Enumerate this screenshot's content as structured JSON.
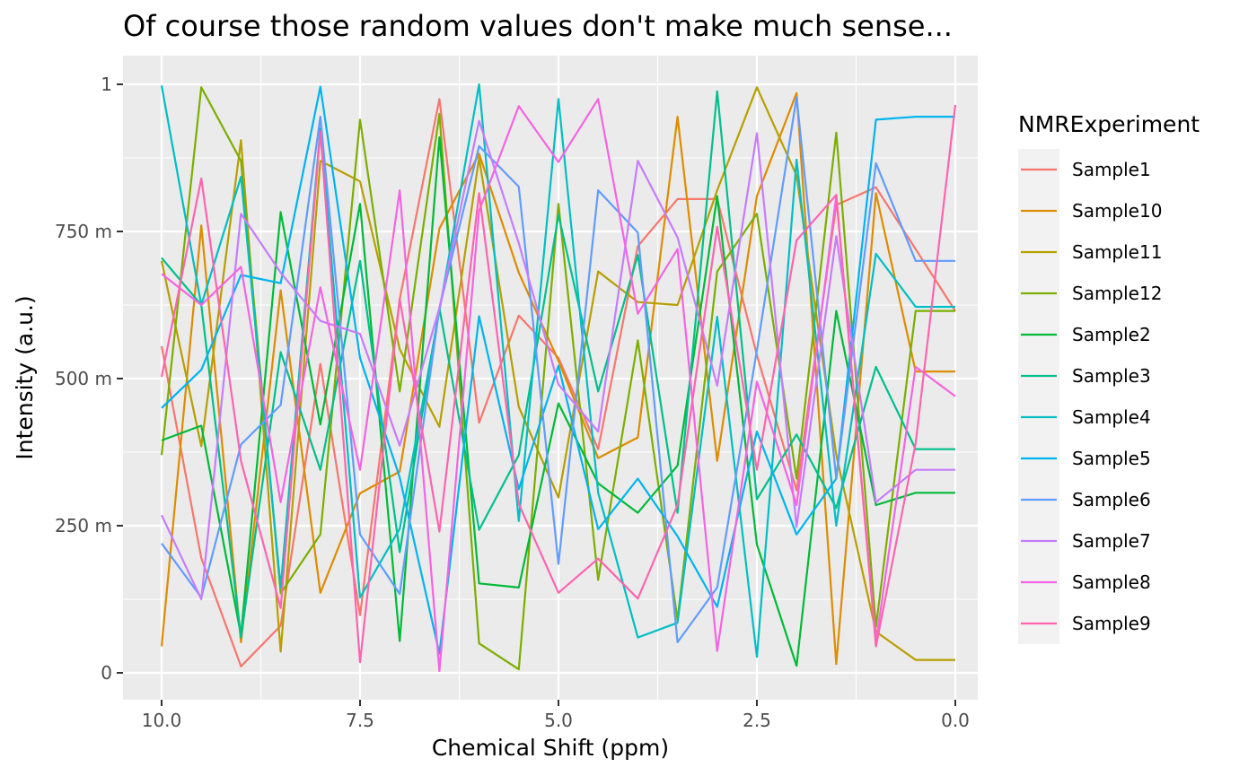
{
  "chart_data": {
    "type": "line",
    "title": "Of course those random values don't make much sense...",
    "xlabel": "Chemical Shift (ppm)",
    "ylabel": "Intensity (a.u.)",
    "x_reversed": true,
    "xlim": [
      10.0,
      0.0
    ],
    "ylim": [
      0,
      1
    ],
    "x_ticks": [
      10.0,
      7.5,
      5.0,
      2.5,
      0.0
    ],
    "x_tick_labels": [
      "10.0",
      "7.5",
      "5.0",
      "2.5",
      "0.0"
    ],
    "y_ticks": [
      0,
      0.25,
      0.5,
      0.75,
      1
    ],
    "y_tick_labels": [
      "0",
      "250 m",
      "500 m",
      "750 m",
      "1"
    ],
    "grid": true,
    "legend": {
      "title": "NMRExperiment",
      "placement": "right"
    },
    "x": [
      10.0,
      9.5,
      9.0,
      8.5,
      8.0,
      7.5,
      7.0,
      6.5,
      6.0,
      5.5,
      5.0,
      4.5,
      4.0,
      3.5,
      3.0,
      2.5,
      2.0,
      1.5,
      1.0,
      0.5,
      0.0
    ],
    "series": [
      {
        "name": "Sample1",
        "color": "#F8766D",
        "values": [
          0.555,
          0.195,
          0.011,
          0.08,
          0.525,
          0.098,
          0.635,
          0.975,
          0.425,
          0.607,
          0.535,
          0.38,
          0.725,
          0.805,
          0.805,
          0.54,
          0.31,
          0.795,
          0.825,
          0.72,
          0.615
        ]
      },
      {
        "name": "Sample10",
        "color": "#DE8C00",
        "values": [
          0.045,
          0.76,
          0.052,
          0.65,
          0.136,
          0.305,
          0.342,
          0.755,
          0.882,
          0.68,
          0.53,
          0.365,
          0.4,
          0.945,
          0.36,
          0.81,
          0.985,
          0.015,
          0.815,
          0.512,
          0.512
        ]
      },
      {
        "name": "Sample11",
        "color": "#B79F00",
        "values": [
          0.7,
          0.385,
          0.905,
          0.036,
          0.87,
          0.835,
          0.55,
          0.418,
          0.875,
          0.452,
          0.298,
          0.682,
          0.63,
          0.625,
          0.82,
          0.995,
          0.845,
          0.37,
          0.07,
          0.022,
          0.022
        ]
      },
      {
        "name": "Sample12",
        "color": "#7CAE00",
        "values": [
          0.37,
          0.995,
          0.87,
          0.135,
          0.235,
          0.94,
          0.478,
          0.95,
          0.05,
          0.006,
          0.797,
          0.158,
          0.565,
          0.09,
          0.682,
          0.78,
          0.33,
          0.918,
          0.078,
          0.615,
          0.615
        ]
      },
      {
        "name": "Sample2",
        "color": "#00BA38",
        "values": [
          0.395,
          0.42,
          0.064,
          0.783,
          0.422,
          0.797,
          0.054,
          0.91,
          0.152,
          0.145,
          0.458,
          0.322,
          0.272,
          0.352,
          0.81,
          0.218,
          0.012,
          0.615,
          0.285,
          0.306,
          0.306
        ]
      },
      {
        "name": "Sample3",
        "color": "#00C08B",
        "values": [
          0.705,
          0.625,
          0.06,
          0.545,
          0.345,
          0.7,
          0.205,
          0.62,
          0.243,
          0.37,
          0.778,
          0.478,
          0.71,
          0.272,
          0.988,
          0.295,
          0.405,
          0.28,
          0.52,
          0.38,
          0.38
        ]
      },
      {
        "name": "Sample4",
        "color": "#00BFC4",
        "values": [
          0.998,
          0.625,
          0.843,
          0.145,
          0.925,
          0.128,
          0.245,
          0.615,
          1.0,
          0.258,
          0.975,
          0.306,
          0.06,
          0.085,
          0.605,
          0.027,
          0.872,
          0.25,
          0.712,
          0.622,
          0.622
        ]
      },
      {
        "name": "Sample5",
        "color": "#00B4F0",
        "values": [
          0.45,
          0.515,
          0.676,
          0.662,
          0.996,
          0.535,
          0.332,
          0.033,
          0.606,
          0.312,
          0.522,
          0.244,
          0.33,
          0.232,
          0.112,
          0.41,
          0.235,
          0.33,
          0.94,
          0.945,
          0.945
        ]
      },
      {
        "name": "Sample6",
        "color": "#619CFF",
        "values": [
          0.22,
          0.128,
          0.388,
          0.455,
          0.945,
          0.235,
          0.134,
          0.62,
          0.895,
          0.826,
          0.185,
          0.82,
          0.748,
          0.052,
          0.145,
          0.548,
          0.978,
          0.33,
          0.866,
          0.7,
          0.7
        ]
      },
      {
        "name": "Sample7",
        "color": "#C77CFF",
        "values": [
          0.268,
          0.125,
          0.78,
          0.68,
          0.598,
          0.576,
          0.386,
          0.62,
          0.938,
          0.73,
          0.49,
          0.41,
          0.87,
          0.74,
          0.488,
          0.917,
          0.248,
          0.742,
          0.29,
          0.345,
          0.345
        ]
      },
      {
        "name": "Sample8",
        "color": "#F564E3",
        "values": [
          0.678,
          0.625,
          0.69,
          0.29,
          0.655,
          0.345,
          0.82,
          0.003,
          0.785,
          0.963,
          0.868,
          0.975,
          0.61,
          0.72,
          0.037,
          0.495,
          0.285,
          0.81,
          0.052,
          0.52,
          0.47
        ]
      },
      {
        "name": "Sample9",
        "color": "#FF64B0",
        "values": [
          0.503,
          0.84,
          0.36,
          0.11,
          0.92,
          0.018,
          0.635,
          0.24,
          0.815,
          0.287,
          0.136,
          0.194,
          0.126,
          0.285,
          0.758,
          0.345,
          0.735,
          0.812,
          0.045,
          0.39,
          0.965
        ]
      }
    ]
  }
}
